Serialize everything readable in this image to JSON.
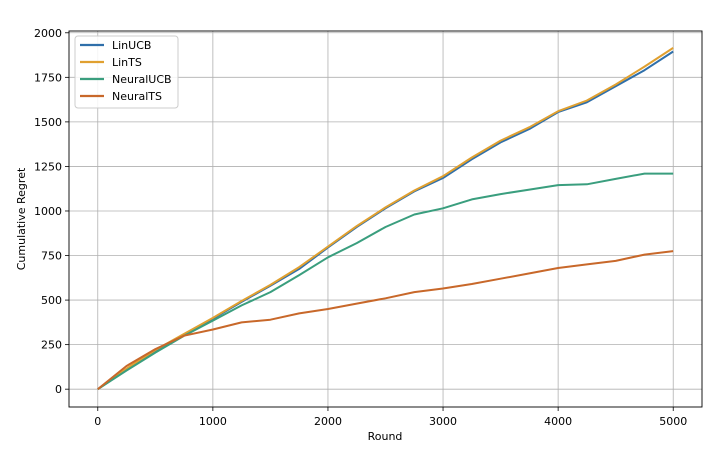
{
  "chart_data": {
    "type": "line",
    "title": "",
    "xlabel": "Round",
    "ylabel": "Cumulative Regret",
    "xlim": [
      -250,
      5250
    ],
    "ylim": [
      -100,
      2010
    ],
    "xticks": [
      0,
      1000,
      2000,
      3000,
      4000,
      5000
    ],
    "xtick_labels": [
      "0",
      "1000",
      "2000",
      "3000",
      "4000",
      "5000"
    ],
    "yticks": [
      0,
      250,
      500,
      750,
      1000,
      1250,
      1500,
      1750,
      2000
    ],
    "ytick_labels": [
      "0",
      "250",
      "500",
      "750",
      "1000",
      "1250",
      "1500",
      "1750",
      "2000"
    ],
    "grid": true,
    "legend_position": "top-left",
    "x": [
      0,
      250,
      500,
      750,
      1000,
      1250,
      1500,
      1750,
      2000,
      2250,
      2500,
      2750,
      3000,
      3250,
      3500,
      3750,
      4000,
      4250,
      4500,
      4750,
      5000
    ],
    "series": [
      {
        "name": "LinUCB",
        "color": "#2f6faa",
        "values": [
          0,
          110,
          215,
          305,
          395,
          490,
          580,
          675,
          795,
          910,
          1015,
          1110,
          1185,
          1290,
          1385,
          1460,
          1555,
          1610,
          1700,
          1790,
          1895
        ]
      },
      {
        "name": "LinTS",
        "color": "#e0a030",
        "values": [
          0,
          115,
          220,
          310,
          400,
          495,
          585,
          685,
          800,
          915,
          1020,
          1115,
          1195,
          1300,
          1395,
          1470,
          1560,
          1620,
          1710,
          1810,
          1915
        ]
      },
      {
        "name": "NeuralUCB",
        "color": "#3a9e7e",
        "values": [
          0,
          105,
          205,
          300,
          385,
          470,
          545,
          640,
          740,
          820,
          910,
          980,
          1015,
          1065,
          1095,
          1120,
          1145,
          1150,
          1180,
          1210,
          1210
        ]
      },
      {
        "name": "NeuralTS",
        "color": "#c8682a",
        "values": [
          0,
          130,
          225,
          300,
          335,
          375,
          390,
          425,
          450,
          480,
          510,
          545,
          565,
          590,
          620,
          650,
          680,
          700,
          720,
          755,
          775
        ]
      }
    ]
  }
}
